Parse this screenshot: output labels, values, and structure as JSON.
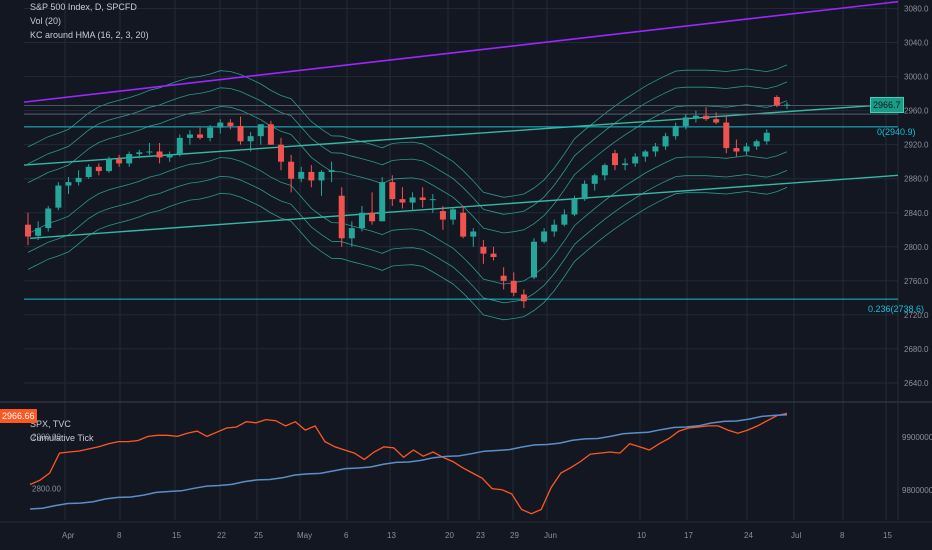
{
  "header": {
    "title": "S&P 500 Index, D, SPCFD",
    "indicator_1": "Vol (20)",
    "indicator_2": "KC around HMA (16, 2, 3, 20)"
  },
  "lower_header": {
    "series_1": "SPX, TVC",
    "series_2": "Cumulative Tick"
  },
  "price_label": "2966.7",
  "lower_price_label": "2966.66",
  "fib_labels": [
    "0(2940.9)",
    "0.236(2738.6)"
  ],
  "colors": {
    "background": "#131722",
    "up": "#26a69a",
    "down": "#ef5350",
    "trend_purple": "#9c27ff",
    "channel": "#35b8a6",
    "fib": "#17c0d0",
    "spx_line": "#ff5722",
    "tick_line": "#5b8ec9"
  },
  "chart_data": {
    "type": "candlestick",
    "x_axis_labels": [
      "Apr",
      "8",
      "15",
      "22",
      "25",
      "May",
      "6",
      "13",
      "20",
      "23",
      "29",
      "Jun",
      "10",
      "17",
      "24",
      "Jul",
      "8",
      "15"
    ],
    "price_axis": [
      3080,
      3040,
      3000,
      2960,
      2920,
      2880,
      2840,
      2800,
      2760,
      2720,
      2680,
      2640
    ],
    "ylim": [
      2620,
      3090
    ],
    "candles": [
      {
        "o": 2826,
        "h": 2840,
        "l": 2802,
        "c": 2812
      },
      {
        "o": 2813,
        "h": 2830,
        "l": 2808,
        "c": 2822
      },
      {
        "o": 2822,
        "h": 2848,
        "l": 2818,
        "c": 2845
      },
      {
        "o": 2846,
        "h": 2876,
        "l": 2843,
        "c": 2872
      },
      {
        "o": 2872,
        "h": 2882,
        "l": 2862,
        "c": 2876
      },
      {
        "o": 2876,
        "h": 2890,
        "l": 2872,
        "c": 2881
      },
      {
        "o": 2882,
        "h": 2897,
        "l": 2880,
        "c": 2894
      },
      {
        "o": 2894,
        "h": 2898,
        "l": 2884,
        "c": 2889
      },
      {
        "o": 2889,
        "h": 2906,
        "l": 2887,
        "c": 2903
      },
      {
        "o": 2903,
        "h": 2908,
        "l": 2894,
        "c": 2898
      },
      {
        "o": 2898,
        "h": 2912,
        "l": 2894,
        "c": 2909
      },
      {
        "o": 2909,
        "h": 2914,
        "l": 2904,
        "c": 2911
      },
      {
        "o": 2911,
        "h": 2922,
        "l": 2908,
        "c": 2912
      },
      {
        "o": 2912,
        "h": 2922,
        "l": 2898,
        "c": 2905
      },
      {
        "o": 2905,
        "h": 2912,
        "l": 2900,
        "c": 2909
      },
      {
        "o": 2909,
        "h": 2932,
        "l": 2906,
        "c": 2928
      },
      {
        "o": 2928,
        "h": 2937,
        "l": 2920,
        "c": 2932
      },
      {
        "o": 2932,
        "h": 2940,
        "l": 2926,
        "c": 2928
      },
      {
        "o": 2928,
        "h": 2943,
        "l": 2924,
        "c": 2940
      },
      {
        "o": 2940,
        "h": 2950,
        "l": 2933,
        "c": 2946
      },
      {
        "o": 2946,
        "h": 2950,
        "l": 2938,
        "c": 2942
      },
      {
        "o": 2942,
        "h": 2953,
        "l": 2920,
        "c": 2924
      },
      {
        "o": 2924,
        "h": 2935,
        "l": 2912,
        "c": 2930
      },
      {
        "o": 2930,
        "h": 2944,
        "l": 2920,
        "c": 2944
      },
      {
        "o": 2944,
        "h": 2948,
        "l": 2920,
        "c": 2920
      },
      {
        "o": 2920,
        "h": 2928,
        "l": 2890,
        "c": 2900
      },
      {
        "o": 2900,
        "h": 2908,
        "l": 2864,
        "c": 2880
      },
      {
        "o": 2880,
        "h": 2894,
        "l": 2876,
        "c": 2888
      },
      {
        "o": 2888,
        "h": 2896,
        "l": 2870,
        "c": 2878
      },
      {
        "o": 2878,
        "h": 2890,
        "l": 2860,
        "c": 2888
      },
      {
        "o": 2888,
        "h": 2900,
        "l": 2876,
        "c": 2890
      },
      {
        "o": 2860,
        "h": 2870,
        "l": 2800,
        "c": 2810
      },
      {
        "o": 2810,
        "h": 2830,
        "l": 2800,
        "c": 2822
      },
      {
        "o": 2822,
        "h": 2848,
        "l": 2818,
        "c": 2840
      },
      {
        "o": 2840,
        "h": 2864,
        "l": 2826,
        "c": 2830
      },
      {
        "o": 2830,
        "h": 2882,
        "l": 2830,
        "c": 2876
      },
      {
        "o": 2876,
        "h": 2884,
        "l": 2848,
        "c": 2856
      },
      {
        "o": 2856,
        "h": 2870,
        "l": 2845,
        "c": 2852
      },
      {
        "o": 2852,
        "h": 2864,
        "l": 2842,
        "c": 2858
      },
      {
        "o": 2858,
        "h": 2870,
        "l": 2846,
        "c": 2855
      },
      {
        "o": 2855,
        "h": 2862,
        "l": 2840,
        "c": 2856
      },
      {
        "o": 2842,
        "h": 2848,
        "l": 2820,
        "c": 2832
      },
      {
        "o": 2832,
        "h": 2846,
        "l": 2826,
        "c": 2844
      },
      {
        "o": 2840,
        "h": 2848,
        "l": 2810,
        "c": 2812
      },
      {
        "o": 2812,
        "h": 2822,
        "l": 2800,
        "c": 2818
      },
      {
        "o": 2800,
        "h": 2808,
        "l": 2780,
        "c": 2792
      },
      {
        "o": 2792,
        "h": 2800,
        "l": 2784,
        "c": 2788
      },
      {
        "o": 2766,
        "h": 2776,
        "l": 2750,
        "c": 2760
      },
      {
        "o": 2760,
        "h": 2770,
        "l": 2742,
        "c": 2746
      },
      {
        "o": 2744,
        "h": 2750,
        "l": 2728,
        "c": 2736
      },
      {
        "o": 2764,
        "h": 2810,
        "l": 2762,
        "c": 2806
      },
      {
        "o": 2806,
        "h": 2822,
        "l": 2804,
        "c": 2818
      },
      {
        "o": 2818,
        "h": 2832,
        "l": 2812,
        "c": 2826
      },
      {
        "o": 2826,
        "h": 2844,
        "l": 2824,
        "c": 2838
      },
      {
        "o": 2838,
        "h": 2860,
        "l": 2836,
        "c": 2856
      },
      {
        "o": 2856,
        "h": 2878,
        "l": 2854,
        "c": 2874
      },
      {
        "o": 2874,
        "h": 2886,
        "l": 2866,
        "c": 2884
      },
      {
        "o": 2884,
        "h": 2898,
        "l": 2878,
        "c": 2896
      },
      {
        "o": 2910,
        "h": 2914,
        "l": 2890,
        "c": 2896
      },
      {
        "o": 2896,
        "h": 2904,
        "l": 2890,
        "c": 2898
      },
      {
        "o": 2898,
        "h": 2910,
        "l": 2894,
        "c": 2906
      },
      {
        "o": 2906,
        "h": 2914,
        "l": 2900,
        "c": 2912
      },
      {
        "o": 2912,
        "h": 2922,
        "l": 2906,
        "c": 2918
      },
      {
        "o": 2918,
        "h": 2934,
        "l": 2914,
        "c": 2930
      },
      {
        "o": 2930,
        "h": 2946,
        "l": 2926,
        "c": 2942
      },
      {
        "o": 2942,
        "h": 2956,
        "l": 2938,
        "c": 2952
      },
      {
        "o": 2952,
        "h": 2960,
        "l": 2946,
        "c": 2954
      },
      {
        "o": 2954,
        "h": 2964,
        "l": 2948,
        "c": 2950
      },
      {
        "o": 2950,
        "h": 2958,
        "l": 2944,
        "c": 2946
      },
      {
        "o": 2946,
        "h": 2954,
        "l": 2910,
        "c": 2916
      },
      {
        "o": 2916,
        "h": 2926,
        "l": 2906,
        "c": 2912
      },
      {
        "o": 2912,
        "h": 2922,
        "l": 2908,
        "c": 2918
      },
      {
        "o": 2918,
        "h": 2926,
        "l": 2914,
        "c": 2924
      },
      {
        "o": 2924,
        "h": 2938,
        "l": 2920,
        "c": 2934
      },
      {
        "o": 2976,
        "h": 2978,
        "l": 2964,
        "c": 2966
      },
      {
        "o": 2966,
        "h": 2970,
        "l": 2962,
        "c": 2967
      }
    ],
    "fib_levels": [
      2940.9,
      2738.6
    ],
    "lower_axis_left": [
      2900.0,
      2800.0
    ],
    "lower_axis_right": [
      "9900000.0",
      "9800000.0"
    ],
    "spx_series": [
      2808,
      2816,
      2830,
      2868,
      2870,
      2872,
      2876,
      2880,
      2886,
      2890,
      2890,
      2892,
      2900,
      2902,
      2902,
      2900,
      2906,
      2910,
      2900,
      2908,
      2916,
      2918,
      2928,
      2926,
      2932,
      2930,
      2920,
      2928,
      2912,
      2920,
      2890,
      2880,
      2874,
      2868,
      2856,
      2870,
      2880,
      2878,
      2860,
      2874,
      2862,
      2870,
      2860,
      2852,
      2840,
      2830,
      2820,
      2800,
      2798,
      2790,
      2760,
      2752,
      2760,
      2802,
      2830,
      2840,
      2852,
      2866,
      2868,
      2870,
      2868,
      2886,
      2880,
      2874,
      2886,
      2896,
      2910,
      2916,
      2918,
      2920,
      2920,
      2912,
      2906,
      2912,
      2920,
      2930,
      2940,
      2944
    ]
  }
}
